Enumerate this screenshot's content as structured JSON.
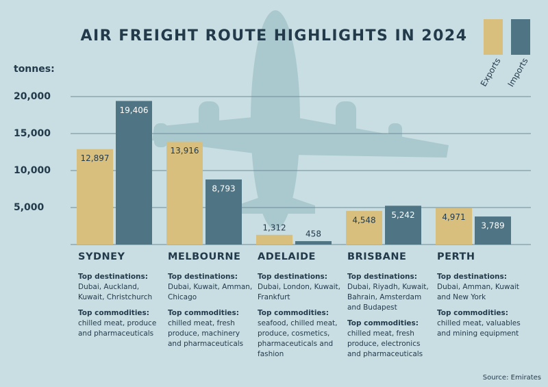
{
  "chart_data": {
    "type": "bar",
    "title": "AIR FREIGHT ROUTE HIGHLIGHTS IN 2024",
    "y_label": "tonnes:",
    "categories": [
      "SYDNEY",
      "MELBOURNE",
      "ADELAIDE",
      "BRISBANE",
      "PERTH"
    ],
    "series": [
      {
        "name": "Exports",
        "color": "#d8bf7e",
        "values": [
          12897,
          13916,
          1312,
          4548,
          4971
        ],
        "value_labels": [
          "12,897",
          "13,916",
          "1,312",
          "4,548",
          "4,971"
        ]
      },
      {
        "name": "Imports",
        "color": "#4f7484",
        "values": [
          19406,
          8793,
          458,
          5242,
          3789
        ],
        "value_labels": [
          "19,406",
          "8,793",
          "458",
          "5,242",
          "3,789"
        ]
      }
    ],
    "ylim": [
      0,
      20000
    ],
    "yticks": [
      {
        "value": 5000,
        "label": "5,000"
      },
      {
        "value": 10000,
        "label": "10,000"
      },
      {
        "value": 15000,
        "label": "15,000"
      },
      {
        "value": 20000,
        "label": "20,000"
      }
    ],
    "grid": true,
    "legend": "top-right",
    "source": "Source: Emirates"
  },
  "details": {
    "destinations_label": "Top destinations:",
    "commodities_label": "Top commodities:",
    "routes": [
      {
        "destinations": "Dubai, Auckland, Kuwait, Christchurch",
        "commodities": "chilled meat, produce and pharmaceuticals"
      },
      {
        "destinations": "Dubai, Kuwait, Amman, Chicago",
        "commodities": "chilled meat, fresh produce, machinery and pharmaceuticals"
      },
      {
        "destinations": "Dubai, London, Kuwait, Frankfurt",
        "commodities": "seafood, chilled meat, produce, cosmetics, pharmaceuticals and fashion"
      },
      {
        "destinations": "Dubai, Riyadh, Kuwait, Bahrain, Amsterdam and Budapest",
        "commodities": "chilled meat, fresh produce, electronics and pharmaceuticals"
      },
      {
        "destinations": "Dubai, Amman, Kuwait and New York",
        "commodities": "chilled meat, valuables and mining equipment"
      }
    ]
  }
}
